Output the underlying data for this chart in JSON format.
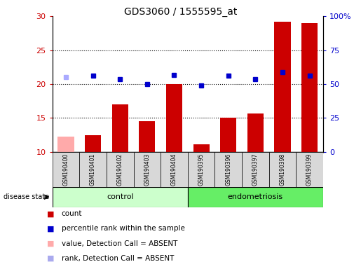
{
  "title": "GDS3060 / 1555595_at",
  "samples": [
    "GSM190400",
    "GSM190401",
    "GSM190402",
    "GSM190403",
    "GSM190404",
    "GSM190395",
    "GSM190396",
    "GSM190397",
    "GSM190398",
    "GSM190399"
  ],
  "bar_values": [
    12.3,
    12.5,
    17.0,
    14.5,
    20.0,
    11.1,
    15.0,
    15.7,
    29.2,
    29.0
  ],
  "bar_colors": [
    "#ffaaaa",
    "#cc0000",
    "#cc0000",
    "#cc0000",
    "#cc0000",
    "#cc0000",
    "#cc0000",
    "#cc0000",
    "#cc0000",
    "#cc0000"
  ],
  "dot_values": [
    21.0,
    21.2,
    20.7,
    20.0,
    21.3,
    19.8,
    21.2,
    20.7,
    21.8,
    21.2
  ],
  "dot_colors": [
    "#aaaaff",
    "#0000cc",
    "#0000cc",
    "#0000cc",
    "#0000cc",
    "#0000cc",
    "#0000cc",
    "#0000cc",
    "#0000cc",
    "#0000cc"
  ],
  "ylim_left": [
    10,
    30
  ],
  "ylim_right": [
    0,
    100
  ],
  "yticks_left": [
    10,
    15,
    20,
    25,
    30
  ],
  "yticks_right": [
    0,
    25,
    50,
    75,
    100
  ],
  "ytick_labels_right": [
    "0",
    "25",
    "50",
    "75",
    "100%"
  ],
  "groups": [
    {
      "label": "control",
      "start": 0,
      "end": 4
    },
    {
      "label": "endometriosis",
      "start": 5,
      "end": 9
    }
  ],
  "group_colors": [
    "#ccffcc",
    "#66ee66"
  ],
  "disease_state_label": "disease state",
  "bar_color_legend": "#cc0000",
  "dot_color_legend": "#0000cc",
  "bar_color_absent": "#ffaaaa",
  "dot_color_absent": "#aaaaee",
  "base_value": 10,
  "left_axis_color": "#cc0000",
  "right_axis_color": "#0000cc",
  "grid_lines": [
    15,
    20,
    25
  ],
  "legend_items": [
    {
      "color": "#cc0000",
      "label": "count"
    },
    {
      "color": "#0000cc",
      "label": "percentile rank within the sample"
    },
    {
      "color": "#ffaaaa",
      "label": "value, Detection Call = ABSENT"
    },
    {
      "color": "#aaaaee",
      "label": "rank, Detection Call = ABSENT"
    }
  ]
}
